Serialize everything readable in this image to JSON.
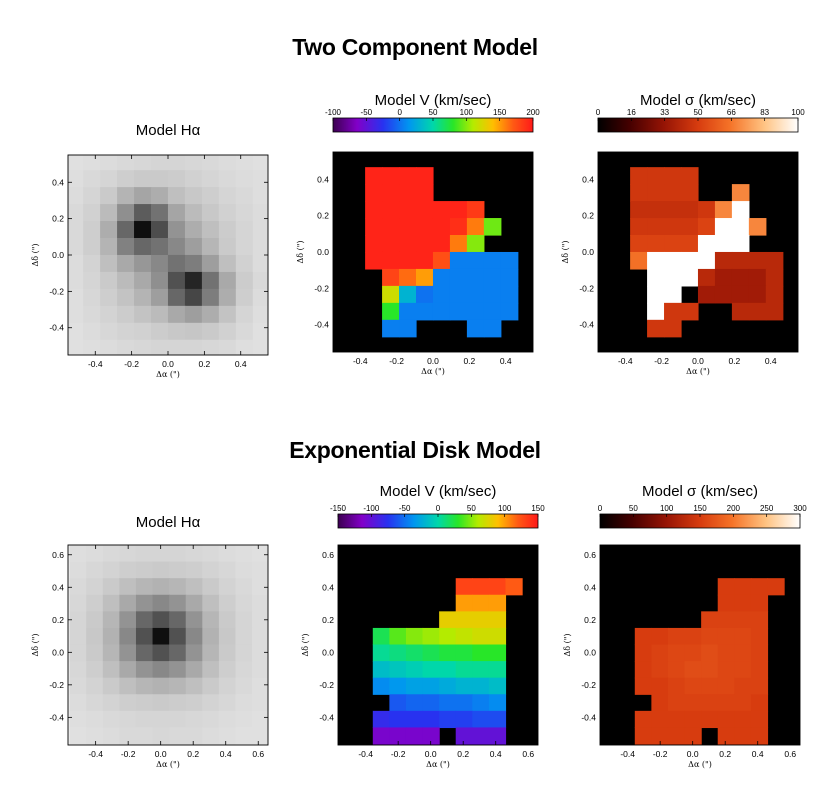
{
  "figure": {
    "top_title": "Two Component Model",
    "bottom_title": "Exponential Disk Model"
  },
  "chart_data": [
    {
      "type": "heatmap",
      "name": "Two Component Model - Model Hα",
      "title": "Model  Hα",
      "xlabel": "Δα (\")",
      "ylabel": "Δδ (\")",
      "xlim": [
        -0.55,
        0.55
      ],
      "ylim": [
        -0.55,
        0.55
      ],
      "xticks": [
        "-0.4",
        "-0.2",
        "0.0",
        "0.2",
        "0.4"
      ],
      "yticks": [
        "-0.4",
        "-0.2",
        "0.0",
        "0.2",
        "0.4"
      ],
      "grid_x0": -0.56,
      "grid_y0": 0.56,
      "cell": 0.0933,
      "values": [
        [
          0.05,
          0.06,
          0.07,
          0.08,
          0.09,
          0.1,
          0.1,
          0.09,
          0.08,
          0.07,
          0.06,
          0.05
        ],
        [
          0.06,
          0.08,
          0.1,
          0.13,
          0.15,
          0.15,
          0.14,
          0.12,
          0.1,
          0.08,
          0.07,
          0.06
        ],
        [
          0.07,
          0.1,
          0.15,
          0.25,
          0.32,
          0.28,
          0.2,
          0.16,
          0.13,
          0.1,
          0.08,
          0.06
        ],
        [
          0.08,
          0.12,
          0.22,
          0.42,
          0.65,
          0.55,
          0.32,
          0.22,
          0.16,
          0.12,
          0.09,
          0.07
        ],
        [
          0.08,
          0.13,
          0.28,
          0.6,
          1.0,
          0.72,
          0.4,
          0.28,
          0.2,
          0.14,
          0.1,
          0.07
        ],
        [
          0.08,
          0.13,
          0.25,
          0.48,
          0.6,
          0.55,
          0.45,
          0.35,
          0.24,
          0.15,
          0.1,
          0.07
        ],
        [
          0.07,
          0.11,
          0.2,
          0.3,
          0.38,
          0.45,
          0.55,
          0.5,
          0.35,
          0.2,
          0.12,
          0.07
        ],
        [
          0.07,
          0.1,
          0.15,
          0.22,
          0.3,
          0.42,
          0.7,
          0.9,
          0.55,
          0.3,
          0.14,
          0.08
        ],
        [
          0.06,
          0.09,
          0.13,
          0.18,
          0.25,
          0.35,
          0.6,
          0.75,
          0.5,
          0.28,
          0.13,
          0.07
        ],
        [
          0.06,
          0.08,
          0.11,
          0.14,
          0.18,
          0.22,
          0.3,
          0.35,
          0.28,
          0.18,
          0.1,
          0.06
        ],
        [
          0.05,
          0.07,
          0.09,
          0.11,
          0.12,
          0.14,
          0.16,
          0.17,
          0.15,
          0.12,
          0.08,
          0.05
        ],
        [
          0.05,
          0.06,
          0.07,
          0.08,
          0.09,
          0.1,
          0.1,
          0.1,
          0.09,
          0.08,
          0.06,
          0.05
        ]
      ]
    },
    {
      "type": "heatmap",
      "name": "Two Component Model - Model V",
      "title": "Model  V (km/sec)",
      "colormap": "rainbow",
      "xlabel": "Δα (\")",
      "ylabel": "Δδ (\")",
      "xlim": [
        -0.55,
        0.55
      ],
      "ylim": [
        -0.55,
        0.55
      ],
      "xticks": [
        "-0.4",
        "-0.2",
        "0.0",
        "0.2",
        "0.4"
      ],
      "yticks": [
        "-0.4",
        "-0.2",
        "0.0",
        "0.2",
        "0.4"
      ],
      "colorbar_ticks": [
        "-100",
        "-50",
        "0",
        "50",
        "100",
        "150",
        "200"
      ],
      "vmin": -100,
      "vmax": 200,
      "grid_x0": -0.56,
      "grid_y0": 0.56,
      "cell": 0.0933,
      "values": [
        [
          null,
          null,
          null,
          null,
          null,
          null,
          null,
          null,
          null,
          null,
          null,
          null
        ],
        [
          null,
          null,
          195,
          195,
          195,
          195,
          null,
          null,
          null,
          null,
          null,
          null
        ],
        [
          null,
          null,
          195,
          195,
          195,
          195,
          null,
          null,
          null,
          null,
          null,
          null
        ],
        [
          null,
          null,
          195,
          195,
          195,
          195,
          195,
          195,
          185,
          null,
          null,
          null
        ],
        [
          null,
          null,
          195,
          195,
          195,
          195,
          195,
          190,
          160,
          95,
          null,
          null
        ],
        [
          null,
          null,
          195,
          195,
          195,
          195,
          195,
          160,
          100,
          null,
          null,
          null
        ],
        [
          null,
          null,
          195,
          195,
          195,
          195,
          175,
          5,
          5,
          5,
          5,
          null
        ],
        [
          null,
          null,
          null,
          180,
          165,
          150,
          5,
          5,
          5,
          5,
          5,
          null
        ],
        [
          null,
          null,
          null,
          120,
          30,
          0,
          5,
          5,
          5,
          5,
          5,
          null
        ],
        [
          null,
          null,
          null,
          80,
          5,
          5,
          5,
          5,
          5,
          5,
          5,
          null
        ],
        [
          null,
          null,
          null,
          5,
          5,
          null,
          null,
          null,
          5,
          5,
          null,
          null
        ],
        [
          null,
          null,
          null,
          null,
          null,
          null,
          null,
          null,
          null,
          null,
          null,
          null
        ]
      ]
    },
    {
      "type": "heatmap",
      "name": "Two Component Model - Model σ",
      "title": "Model  σ (km/sec)",
      "colormap": "hot",
      "xlabel": "Δα (\")",
      "ylabel": "Δδ (\")",
      "xlim": [
        -0.55,
        0.55
      ],
      "ylim": [
        -0.55,
        0.55
      ],
      "xticks": [
        "-0.4",
        "-0.2",
        "0.0",
        "0.2",
        "0.4"
      ],
      "yticks": [
        "-0.4",
        "-0.2",
        "0.0",
        "0.2",
        "0.4"
      ],
      "colorbar_ticks": [
        "0",
        "16",
        "33",
        "50",
        "66",
        "83",
        "100"
      ],
      "vmin": 0,
      "vmax": 100,
      "grid_x0": -0.56,
      "grid_y0": 0.56,
      "cell": 0.0933,
      "values": [
        [
          null,
          null,
          null,
          null,
          null,
          null,
          null,
          null,
          null,
          null,
          null,
          null
        ],
        [
          null,
          null,
          48,
          48,
          48,
          48,
          null,
          null,
          null,
          null,
          null,
          null
        ],
        [
          null,
          null,
          48,
          48,
          48,
          48,
          null,
          null,
          70,
          null,
          null,
          null
        ],
        [
          null,
          null,
          45,
          45,
          45,
          45,
          48,
          70,
          100,
          null,
          null,
          null
        ],
        [
          null,
          null,
          48,
          48,
          48,
          48,
          52,
          100,
          100,
          70,
          null,
          null
        ],
        [
          null,
          null,
          52,
          52,
          52,
          52,
          100,
          100,
          100,
          null,
          null,
          null
        ],
        [
          null,
          null,
          65,
          100,
          100,
          100,
          100,
          42,
          42,
          42,
          42,
          null
        ],
        [
          null,
          null,
          null,
          100,
          100,
          100,
          42,
          36,
          36,
          36,
          42,
          null
        ],
        [
          null,
          null,
          null,
          100,
          100,
          null,
          36,
          36,
          36,
          36,
          42,
          null
        ],
        [
          null,
          null,
          null,
          100,
          48,
          48,
          null,
          null,
          42,
          42,
          42,
          null
        ],
        [
          null,
          null,
          null,
          48,
          48,
          null,
          null,
          null,
          null,
          null,
          null,
          null
        ],
        [
          null,
          null,
          null,
          null,
          null,
          null,
          null,
          null,
          null,
          null,
          null,
          null
        ]
      ]
    },
    {
      "type": "heatmap",
      "name": "Exponential Disk Model - Model Hα",
      "title": "Model  Hα",
      "xlabel": "Δα (\")",
      "ylabel": "Δδ (\")",
      "xlim": [
        -0.57,
        0.66
      ],
      "ylim": [
        -0.57,
        0.66
      ],
      "xticks": [
        "-0.4",
        "-0.2",
        "0.0",
        "0.2",
        "0.4",
        "0.6"
      ],
      "yticks": [
        "-0.4",
        "-0.2",
        "0.0",
        "0.2",
        "0.4",
        "0.6"
      ],
      "grid_x0": -0.56,
      "grid_y0": 0.66,
      "cell": 0.102,
      "values": [
        [
          0.06,
          0.07,
          0.08,
          0.09,
          0.1,
          0.1,
          0.1,
          0.09,
          0.08,
          0.07,
          0.06,
          0.05
        ],
        [
          0.07,
          0.09,
          0.11,
          0.13,
          0.14,
          0.15,
          0.14,
          0.13,
          0.11,
          0.09,
          0.07,
          0.06
        ],
        [
          0.08,
          0.11,
          0.15,
          0.2,
          0.24,
          0.26,
          0.24,
          0.2,
          0.15,
          0.11,
          0.08,
          0.06
        ],
        [
          0.09,
          0.13,
          0.2,
          0.3,
          0.4,
          0.45,
          0.4,
          0.3,
          0.2,
          0.13,
          0.09,
          0.07
        ],
        [
          0.1,
          0.15,
          0.24,
          0.4,
          0.6,
          0.7,
          0.6,
          0.4,
          0.24,
          0.15,
          0.1,
          0.07
        ],
        [
          0.1,
          0.16,
          0.26,
          0.45,
          0.7,
          1.0,
          0.7,
          0.45,
          0.26,
          0.16,
          0.1,
          0.07
        ],
        [
          0.1,
          0.15,
          0.24,
          0.4,
          0.6,
          0.7,
          0.6,
          0.4,
          0.24,
          0.15,
          0.1,
          0.07
        ],
        [
          0.09,
          0.13,
          0.2,
          0.3,
          0.4,
          0.45,
          0.4,
          0.3,
          0.2,
          0.13,
          0.09,
          0.07
        ],
        [
          0.08,
          0.11,
          0.15,
          0.2,
          0.24,
          0.26,
          0.24,
          0.2,
          0.15,
          0.11,
          0.08,
          0.06
        ],
        [
          0.07,
          0.09,
          0.11,
          0.13,
          0.14,
          0.15,
          0.14,
          0.13,
          0.11,
          0.09,
          0.07,
          0.06
        ],
        [
          0.06,
          0.07,
          0.08,
          0.09,
          0.1,
          0.1,
          0.1,
          0.09,
          0.08,
          0.07,
          0.06,
          0.05
        ],
        [
          0.05,
          0.06,
          0.07,
          0.08,
          0.08,
          0.09,
          0.08,
          0.08,
          0.07,
          0.06,
          0.05,
          0.05
        ]
      ]
    },
    {
      "type": "heatmap",
      "name": "Exponential Disk Model - Model V",
      "title": "Model  V (km/sec)",
      "colormap": "rainbow",
      "xlabel": "Δα (\")",
      "ylabel": "Δδ (\")",
      "xlim": [
        -0.57,
        0.66
      ],
      "ylim": [
        -0.57,
        0.66
      ],
      "xticks": [
        "-0.4",
        "-0.2",
        "0.0",
        "0.2",
        "0.4",
        "0.6"
      ],
      "yticks": [
        "-0.4",
        "-0.2",
        "0.0",
        "0.2",
        "0.4",
        "0.6"
      ],
      "colorbar_ticks": [
        "-150",
        "-100",
        "-50",
        "0",
        "50",
        "100",
        "150"
      ],
      "vmin": -150,
      "vmax": 150,
      "grid_x0": -0.56,
      "grid_y0": 0.66,
      "cell": 0.102,
      "values": [
        [
          null,
          null,
          null,
          null,
          null,
          null,
          null,
          null,
          null,
          null,
          null,
          null
        ],
        [
          null,
          null,
          null,
          null,
          null,
          null,
          null,
          null,
          null,
          null,
          null,
          null
        ],
        [
          null,
          null,
          null,
          null,
          null,
          null,
          null,
          130,
          130,
          130,
          120,
          null
        ],
        [
          null,
          null,
          null,
          null,
          null,
          null,
          null,
          100,
          100,
          100,
          null,
          null
        ],
        [
          null,
          null,
          null,
          null,
          null,
          null,
          80,
          80,
          80,
          80,
          null,
          null
        ],
        [
          null,
          null,
          20,
          40,
          50,
          55,
          60,
          65,
          70,
          70,
          null,
          null
        ],
        [
          null,
          null,
          5,
          10,
          15,
          20,
          25,
          25,
          30,
          30,
          null,
          null
        ],
        [
          null,
          null,
          -15,
          -10,
          -5,
          0,
          0,
          5,
          5,
          5,
          null,
          null
        ],
        [
          null,
          null,
          -40,
          -35,
          -30,
          -30,
          -25,
          -20,
          -20,
          -15,
          null,
          null
        ],
        [
          null,
          null,
          null,
          -60,
          -55,
          -55,
          -50,
          -50,
          -45,
          -40,
          null,
          null
        ],
        [
          null,
          null,
          -80,
          -75,
          -75,
          -75,
          -70,
          -70,
          -65,
          -65,
          null,
          null
        ],
        [
          null,
          null,
          -110,
          -110,
          -110,
          -110,
          null,
          -100,
          -100,
          -100,
          null,
          null
        ]
      ]
    },
    {
      "type": "heatmap",
      "name": "Exponential Disk Model - Model σ",
      "title": "Model  σ (km/sec)",
      "colormap": "hot",
      "xlabel": "Δα (\")",
      "ylabel": "Δδ (\")",
      "xlim": [
        -0.57,
        0.66
      ],
      "ylim": [
        -0.57,
        0.66
      ],
      "xticks": [
        "-0.4",
        "-0.2",
        "0.0",
        "0.2",
        "0.4",
        "0.6"
      ],
      "yticks": [
        "-0.4",
        "-0.2",
        "0.0",
        "0.2",
        "0.4",
        "0.6"
      ],
      "colorbar_ticks": [
        "0",
        "50",
        "100",
        "150",
        "200",
        "250",
        "300"
      ],
      "vmin": 0,
      "vmax": 300,
      "grid_x0": -0.56,
      "grid_y0": 0.66,
      "cell": 0.102,
      "values": [
        [
          null,
          null,
          null,
          null,
          null,
          null,
          null,
          null,
          null,
          null,
          null,
          null
        ],
        [
          null,
          null,
          null,
          null,
          null,
          null,
          null,
          null,
          null,
          null,
          null,
          null
        ],
        [
          null,
          null,
          null,
          null,
          null,
          null,
          null,
          150,
          150,
          150,
          150,
          null
        ],
        [
          null,
          null,
          null,
          null,
          null,
          null,
          null,
          150,
          150,
          150,
          null,
          null
        ],
        [
          null,
          null,
          null,
          null,
          null,
          null,
          155,
          155,
          155,
          155,
          null,
          null
        ],
        [
          null,
          null,
          150,
          150,
          155,
          155,
          160,
          160,
          160,
          155,
          null,
          null
        ],
        [
          null,
          null,
          150,
          155,
          160,
          160,
          165,
          160,
          160,
          155,
          null,
          null
        ],
        [
          null,
          null,
          150,
          155,
          160,
          165,
          165,
          160,
          160,
          155,
          null,
          null
        ],
        [
          null,
          null,
          150,
          150,
          155,
          160,
          160,
          160,
          155,
          155,
          null,
          null
        ],
        [
          null,
          null,
          null,
          150,
          155,
          155,
          155,
          155,
          155,
          150,
          null,
          null
        ],
        [
          null,
          null,
          150,
          150,
          150,
          150,
          150,
          150,
          150,
          150,
          null,
          null
        ],
        [
          null,
          null,
          150,
          150,
          150,
          150,
          null,
          150,
          150,
          150,
          null,
          null
        ]
      ]
    }
  ]
}
